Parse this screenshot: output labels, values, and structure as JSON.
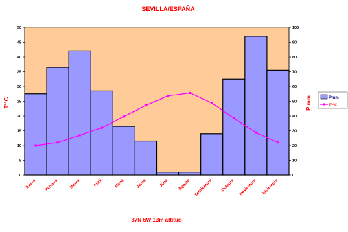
{
  "chart_data": {
    "type": "bar",
    "title": "SEVILLA/ESPAÑA",
    "subtitle": "37N  6W  13m altitud",
    "ylabel": "Tª°C",
    "y2label": "P mm",
    "categories": [
      "Enero",
      "Febrero",
      "Marzo",
      "Abril",
      "Mayo",
      "Junio",
      "Julio",
      "Agosto",
      "Septiembre",
      "Octubre",
      "Noviembre",
      "Diciembre"
    ],
    "ylim": [
      0,
      50
    ],
    "y2lim": [
      0,
      100
    ],
    "yticks": [
      "0",
      "5",
      "10",
      "15",
      "20",
      "25",
      "30",
      "35",
      "40",
      "45",
      "50"
    ],
    "y2ticks": [
      "0",
      "10",
      "20",
      "30",
      "40",
      "50",
      "60",
      "70",
      "80",
      "90",
      "100"
    ],
    "grid": false,
    "legend_position": "right",
    "series": [
      {
        "name": "Pmm",
        "kind": "bar",
        "axis": "right",
        "color": "#9999ff",
        "values": [
          55,
          73,
          84,
          57,
          33,
          23,
          2,
          2,
          28,
          65,
          94,
          71
        ]
      },
      {
        "name": "Tª°C",
        "kind": "line",
        "axis": "left",
        "color": "#ff00ff",
        "values": [
          10.0,
          11.0,
          13.5,
          16.0,
          19.8,
          23.6,
          26.8,
          27.8,
          24.4,
          19.2,
          14.4,
          11.0
        ]
      }
    ],
    "colors": {
      "plot_background": "#ffcc99",
      "axis_text": "#ff0000",
      "tick_text": "#000000"
    }
  }
}
